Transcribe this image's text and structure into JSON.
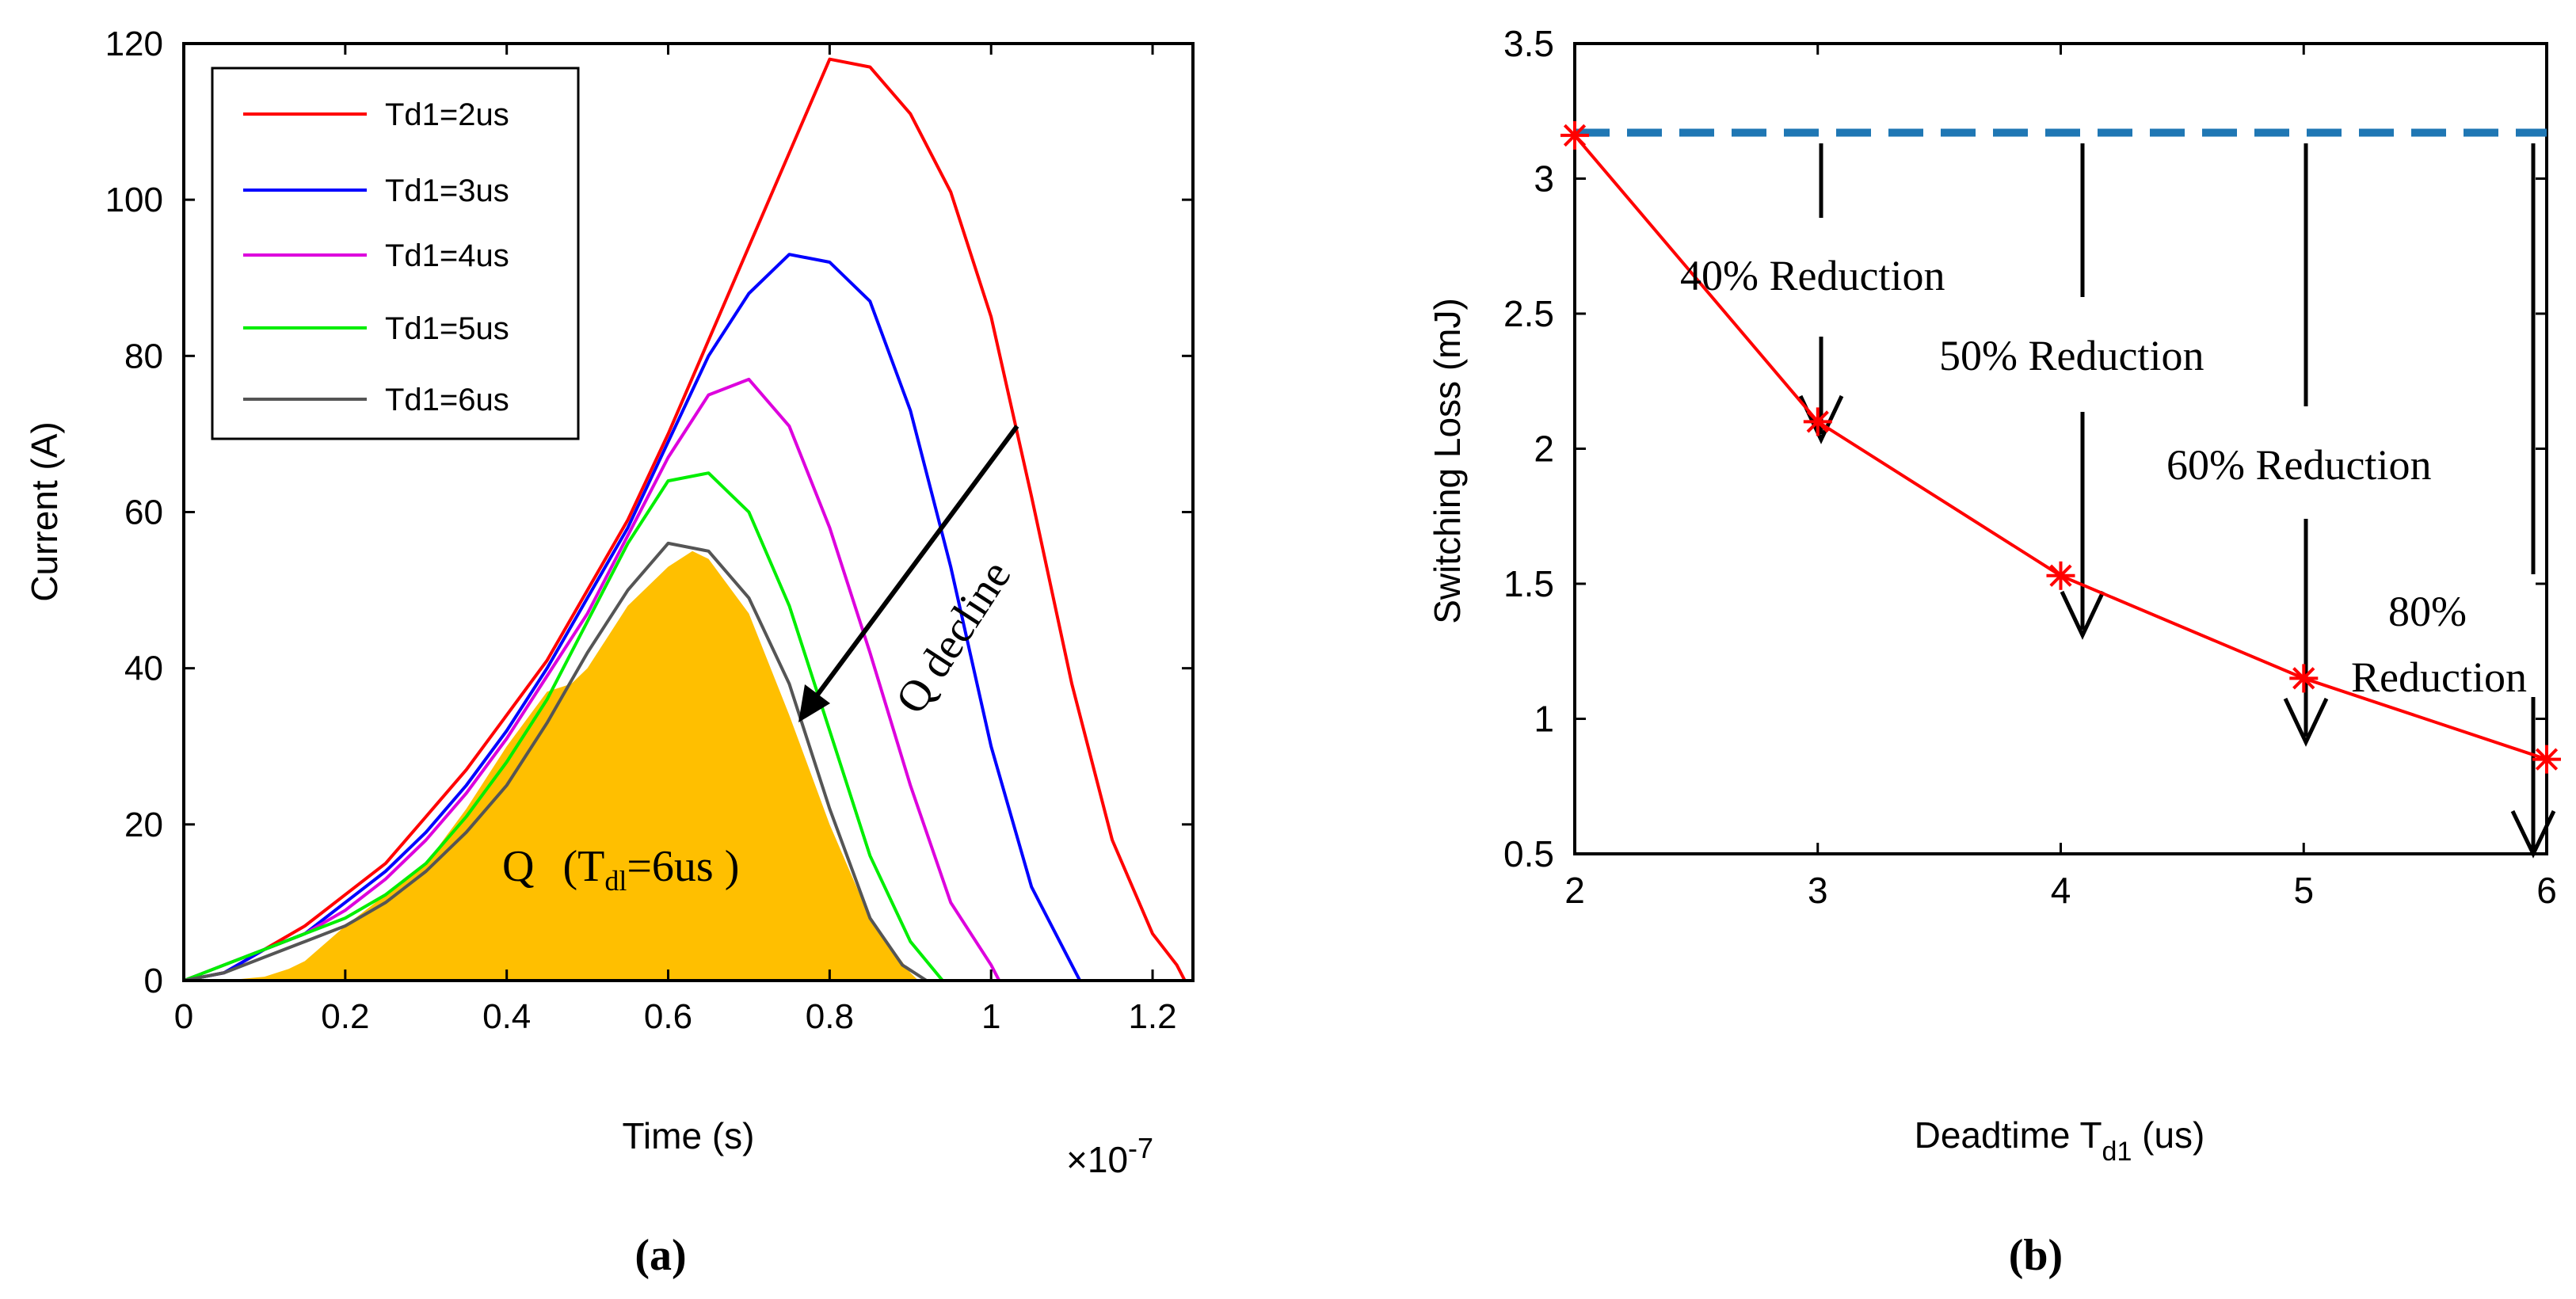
{
  "chart_data": [
    {
      "panel": "(a)",
      "type": "line",
      "panel_label": "(a)",
      "xlabel": "Time (s)",
      "ylabel": "Current (A)",
      "x_multiplier": "×10",
      "x_multiplier_exp": "-7",
      "xlim": [
        0,
        1.25
      ],
      "ylim": [
        0,
        120
      ],
      "xticks": [
        0,
        0.2,
        0.4,
        0.6,
        0.8,
        1,
        1.2
      ],
      "xtick_labels": [
        "0",
        "0.2",
        "0.4",
        "0.6",
        "0.8",
        "1",
        "1.2"
      ],
      "yticks": [
        0,
        20,
        40,
        60,
        80,
        100,
        120
      ],
      "ytick_labels": [
        "0",
        "20",
        "40",
        "60",
        "80",
        "100",
        "120"
      ],
      "legend_position": "top-left",
      "series": [
        {
          "name": "Td1=2us",
          "color": "#ff0000",
          "x": [
            0.0,
            0.05,
            0.1,
            0.15,
            0.2,
            0.25,
            0.3,
            0.35,
            0.4,
            0.45,
            0.5,
            0.55,
            0.6,
            0.65,
            0.7,
            0.75,
            0.8,
            0.85,
            0.9,
            0.95,
            1.0,
            1.05,
            1.1,
            1.15,
            1.2,
            1.23,
            1.24
          ],
          "y": [
            0,
            1,
            4,
            7,
            11,
            15,
            21,
            27,
            34,
            41,
            50,
            59,
            70,
            82,
            94,
            106,
            118,
            117,
            111,
            101,
            85,
            62,
            38,
            18,
            6,
            2,
            0
          ]
        },
        {
          "name": "Td1=3us",
          "color": "#0000ff",
          "x": [
            0.0,
            0.05,
            0.1,
            0.15,
            0.2,
            0.25,
            0.3,
            0.35,
            0.4,
            0.45,
            0.5,
            0.55,
            0.6,
            0.65,
            0.7,
            0.75,
            0.8,
            0.85,
            0.9,
            0.95,
            1.0,
            1.05,
            1.1,
            1.11
          ],
          "y": [
            0,
            1,
            4,
            6,
            10,
            14,
            19,
            25,
            32,
            40,
            49,
            58,
            69,
            80,
            88,
            93,
            92,
            87,
            73,
            53,
            30,
            12,
            2,
            0
          ]
        },
        {
          "name": "Td1=4us",
          "color": "#dd00dd",
          "x": [
            0.0,
            0.05,
            0.1,
            0.15,
            0.2,
            0.25,
            0.3,
            0.35,
            0.4,
            0.45,
            0.5,
            0.55,
            0.6,
            0.65,
            0.7,
            0.75,
            0.8,
            0.85,
            0.9,
            0.95,
            1.0,
            1.01
          ],
          "y": [
            0,
            2,
            4,
            6,
            9,
            13,
            18,
            24,
            31,
            39,
            47,
            57,
            67,
            75,
            77,
            71,
            58,
            42,
            25,
            10,
            2,
            0
          ]
        },
        {
          "name": "Td1=5us",
          "color": "#00ee00",
          "x": [
            0.0,
            0.05,
            0.1,
            0.15,
            0.2,
            0.25,
            0.3,
            0.35,
            0.4,
            0.45,
            0.5,
            0.55,
            0.6,
            0.65,
            0.7,
            0.75,
            0.8,
            0.85,
            0.9,
            0.94
          ],
          "y": [
            0,
            2,
            4,
            6,
            8,
            11,
            15,
            21,
            28,
            36,
            46,
            56,
            64,
            65,
            60,
            48,
            32,
            16,
            5,
            0
          ]
        },
        {
          "name": "Td1=6us",
          "color": "#555555",
          "x": [
            0.0,
            0.05,
            0.1,
            0.15,
            0.2,
            0.25,
            0.3,
            0.35,
            0.4,
            0.45,
            0.5,
            0.55,
            0.6,
            0.65,
            0.7,
            0.75,
            0.8,
            0.85,
            0.89,
            0.92
          ],
          "y": [
            0,
            1,
            3,
            5,
            7,
            10,
            14,
            19,
            25,
            33,
            42,
            50,
            56,
            55,
            49,
            38,
            22,
            8,
            2,
            0
          ]
        }
      ],
      "filled_area": {
        "color": "#ffbf00",
        "x": [
          0.0,
          0.05,
          0.1,
          0.13,
          0.15,
          0.2,
          0.25,
          0.3,
          0.35,
          0.4,
          0.45,
          0.48,
          0.5,
          0.55,
          0.6,
          0.63,
          0.65,
          0.7,
          0.75,
          0.8,
          0.85,
          0.9,
          0.91
        ],
        "y": [
          0,
          0,
          0.5,
          1.5,
          2.5,
          7,
          11,
          15,
          22,
          30,
          37,
          38,
          40,
          48,
          53,
          55,
          54,
          47,
          34,
          20,
          8,
          1,
          0
        ]
      },
      "annotations": {
        "q_label": "Q",
        "q_paren_open": "(T",
        "q_subscript": "dl",
        "q_rest": "=6us )",
        "q_decline": "Q  decline"
      }
    },
    {
      "panel": "(b)",
      "type": "line",
      "panel_label": "(b)",
      "xlabel_main": "Deadtime T",
      "xlabel_sub": "d1",
      "xlabel_end": " (us)",
      "ylabel": "Switching Loss (mJ)",
      "xlim": [
        2,
        6
      ],
      "ylim": [
        0.5,
        3.5
      ],
      "xticks": [
        2,
        3,
        4,
        5,
        6
      ],
      "xtick_labels": [
        "2",
        "3",
        "4",
        "5",
        "6"
      ],
      "yticks": [
        0.5,
        1,
        1.5,
        2,
        2.5,
        3,
        3.5
      ],
      "ytick_labels": [
        "0.5",
        "1",
        "1.5",
        "2",
        "2.5",
        "3",
        "3.5"
      ],
      "series": [
        {
          "name": "Switching loss",
          "color": "#ff0000",
          "marker": "*",
          "x": [
            2,
            3,
            4,
            5,
            6
          ],
          "y": [
            3.16,
            2.1,
            1.53,
            1.15,
            0.85
          ]
        }
      ],
      "reference_line": {
        "y": 3.17,
        "color": "#1f77b4",
        "style": "dashed"
      },
      "reductions": [
        {
          "label": "40% Reduction",
          "x": 3
        },
        {
          "label": "50% Reduction",
          "x": 4
        },
        {
          "label": "60% Reduction",
          "x": 5
        },
        {
          "label_line1": "80%",
          "label_line2": "Reduction",
          "x": 6
        }
      ]
    }
  ]
}
